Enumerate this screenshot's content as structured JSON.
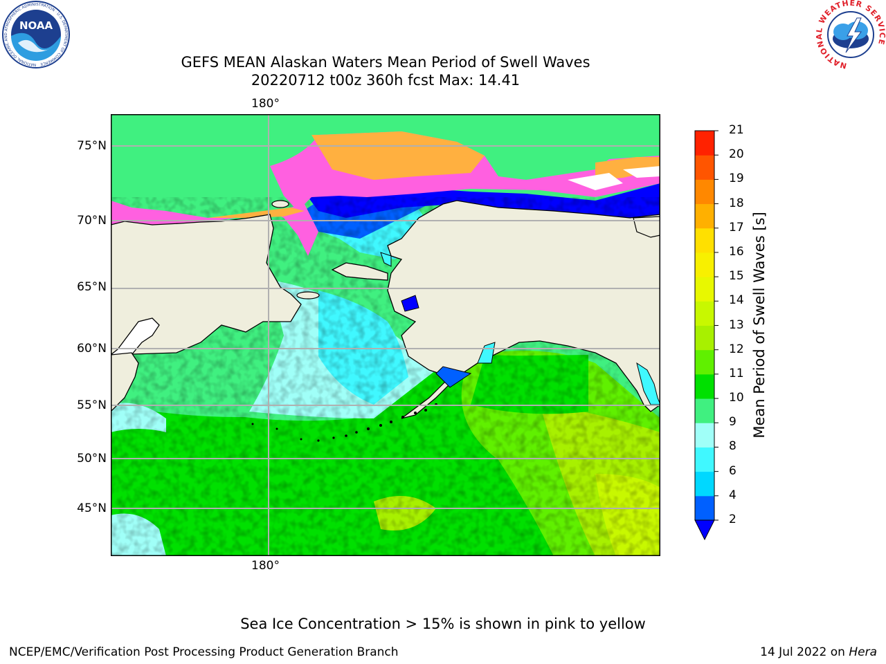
{
  "title": {
    "line1": "GEFS MEAN Alaskan Waters Mean Period of Swell Waves",
    "line2": "20220712 t00z 360h fcst   Max: 14.41"
  },
  "map": {
    "lon_label_top": "180°",
    "lon_label_bottom": "180°",
    "lat_labels": [
      "75°N",
      "70°N",
      "65°N",
      "60°N",
      "55°N",
      "50°N",
      "45°N"
    ],
    "colors": {
      "land": "#efeedd",
      "coast": "#000000",
      "grid": "#b0b0b0"
    }
  },
  "colorbar": {
    "label": "Mean Period of Swell Waves [s]",
    "ticks": [
      "2",
      "4",
      "6",
      "8",
      "9",
      "10",
      "11",
      "12",
      "13",
      "14",
      "15",
      "16",
      "17",
      "18",
      "19",
      "20",
      "21"
    ],
    "colors": [
      "#0060ff",
      "#00d8ff",
      "#40f8ff",
      "#a0fff8",
      "#40f080",
      "#00e000",
      "#60f000",
      "#a8f000",
      "#c8f800",
      "#e8f800",
      "#f8f000",
      "#ffe000",
      "#ffb000",
      "#ff8800",
      "#ff5500",
      "#ff2200"
    ],
    "extend_color": "#0000ff"
  },
  "caption": "Sea Ice Concentration > 15% is shown in pink to yellow",
  "footer": {
    "left": "NCEP/EMC/Verification Post Processing Product Generation Branch",
    "right_date": "14 Jul 2022 on ",
    "right_machine": "Hera"
  },
  "logos": {
    "noaa": {
      "center_text": "NOAA",
      "ring_text": "NATIONAL OCEANIC AND ATMOSPHERIC ADMINISTRATION · U.S. DEPARTMENT OF COMMERCE"
    },
    "nws": {
      "ring_text": "NATIONAL WEATHER SERVICE"
    }
  }
}
